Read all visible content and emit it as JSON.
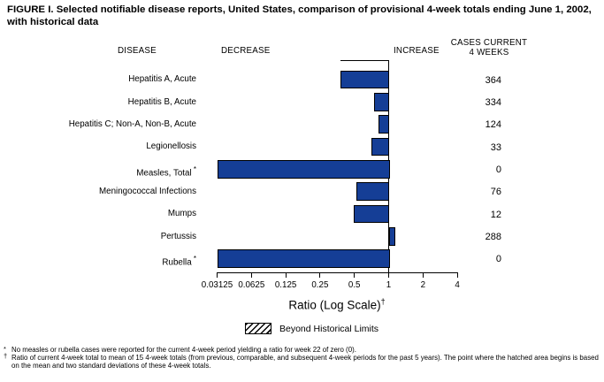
{
  "title": "FIGURE I. Selected notifiable disease reports, United States, comparison of provisional 4-week totals ending June 1, 2002, with historical data",
  "columns": {
    "disease": "DISEASE",
    "decrease": "DECREASE",
    "increase": "INCREASE",
    "cases_line1": "CASES CURRENT",
    "cases_line2": "4 WEEKS"
  },
  "chart_data": {
    "type": "bar",
    "orientation": "horizontal",
    "scale": "log",
    "xlabel": "Ratio (Log Scale)",
    "xlabel_marker": "†",
    "xlim": [
      0.03125,
      4
    ],
    "baseline_ratio": 1,
    "axis_ticks": [
      0.03125,
      0.0625,
      0.125,
      0.25,
      0.5,
      1,
      2,
      4
    ],
    "axis_tick_labels": [
      "0.03125",
      "0.0625",
      "0.125",
      "0.25",
      "0.5",
      "1",
      "2",
      "4"
    ],
    "bar_color": "#153e96",
    "historical_limit_line": {
      "start_ratio": 0.38,
      "end_ratio": 1
    },
    "rows": [
      {
        "disease": "Hepatitis A, Acute",
        "marker": "",
        "ratio": 0.38,
        "cases": "364"
      },
      {
        "disease": "Hepatitis B, Acute",
        "marker": "",
        "ratio": 0.75,
        "cases": "334"
      },
      {
        "disease": "Hepatitis C; Non-A, Non-B, Acute",
        "marker": "",
        "ratio": 0.81,
        "cases": "124"
      },
      {
        "disease": "Legionellosis",
        "marker": "",
        "ratio": 0.7,
        "cases": "33"
      },
      {
        "disease": "Measles, Total",
        "marker": "*",
        "ratio": 0,
        "cases": "0"
      },
      {
        "disease": "Meningococcal Infections",
        "marker": "",
        "ratio": 0.52,
        "cases": "76"
      },
      {
        "disease": "Mumps",
        "marker": "",
        "ratio": 0.49,
        "cases": "12"
      },
      {
        "disease": "Pertussis",
        "marker": "",
        "ratio": 1.13,
        "cases": "288"
      },
      {
        "disease": "Rubella",
        "marker": "*",
        "ratio": 0,
        "cases": "0"
      }
    ],
    "legend": {
      "label": "Beyond Historical Limits",
      "swatch": "diagonal-hatch"
    }
  },
  "footnotes": [
    {
      "marker": "*",
      "text": "No measles or rubella cases were reported for the current 4-week period yielding a ratio for week 22 of zero (0)."
    },
    {
      "marker": "†",
      "text": "Ratio of current 4-week total to mean of 15 4-week totals (from previous, comparable, and subsequent 4-week periods for the past 5 years). The point where the hatched area begins is based on the mean and two standard deviations of these 4-week totals."
    }
  ]
}
